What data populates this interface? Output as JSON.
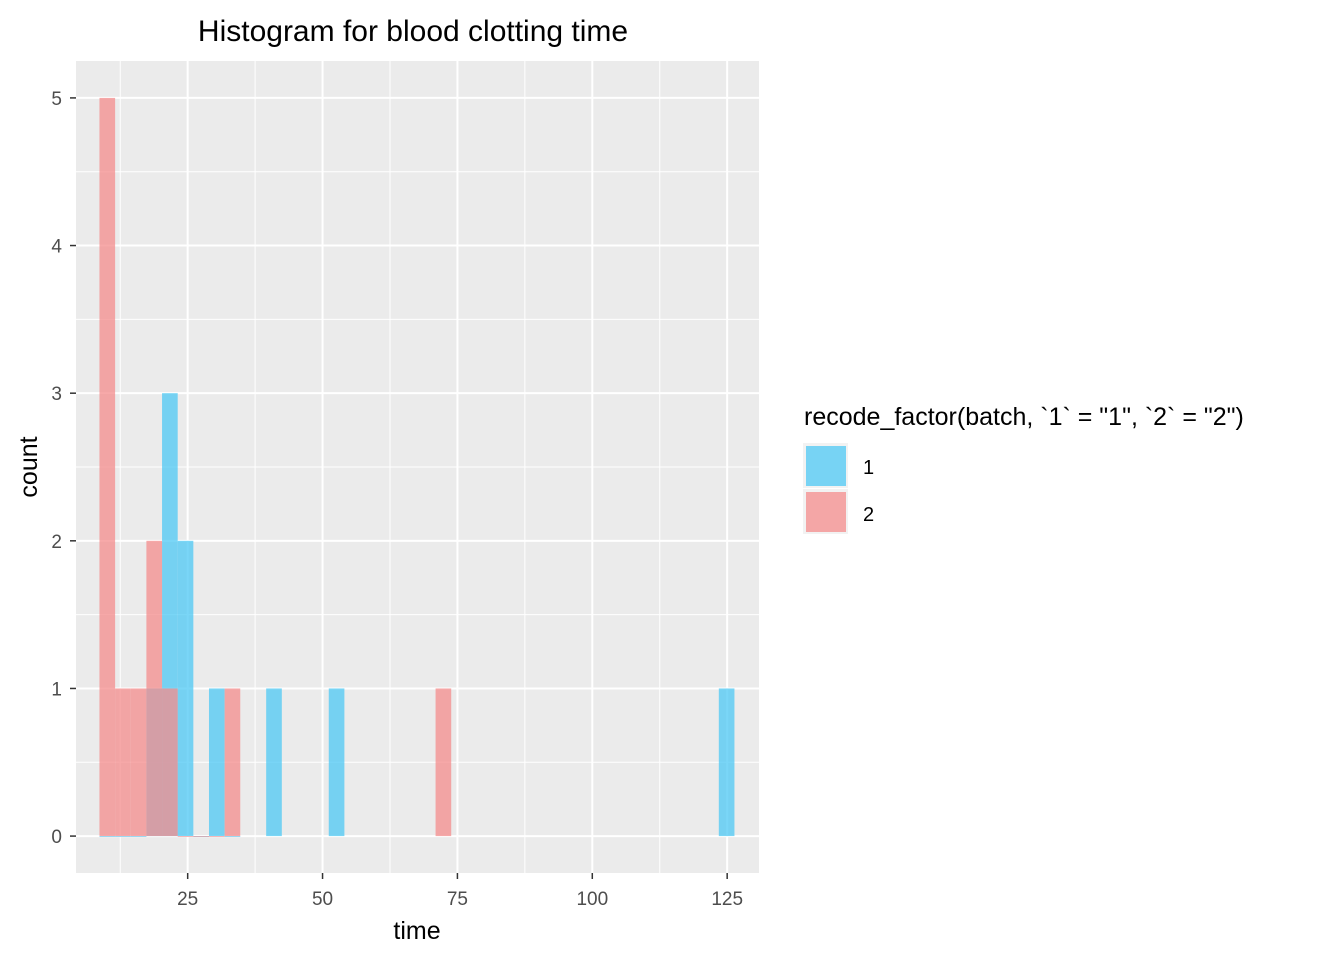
{
  "chart_data": {
    "type": "bar",
    "title": "Histogram for blood clotting time",
    "xlabel": "time",
    "ylabel": "count",
    "xlim": [
      4.3,
      130.9
    ],
    "ylim": [
      -0.25,
      5.25
    ],
    "x_ticks": [
      25,
      50,
      75,
      100,
      125
    ],
    "x_tick_labels": [
      "25",
      "50",
      "75",
      "100",
      "125"
    ],
    "y_ticks": [
      0,
      1,
      2,
      3,
      4,
      5
    ],
    "y_tick_labels": [
      "0",
      "1",
      "2",
      "3",
      "4",
      "5"
    ],
    "bin_width": 2.9,
    "grid": true,
    "legend": {
      "position": "right",
      "title": "recode_factor(batch, `1` = \"1\", `2` = \"2\")",
      "entries": [
        {
          "name": "1",
          "color": "#4dc8f4"
        },
        {
          "name": "2",
          "color": "#f48c8c"
        }
      ]
    },
    "series": [
      {
        "name": "1",
        "color": "#4dc8f4",
        "opacity": 0.75,
        "bins": [
          {
            "x": 10.1,
            "count": 0
          },
          {
            "x": 13.0,
            "count": 0
          },
          {
            "x": 15.9,
            "count": 0
          },
          {
            "x": 18.8,
            "count": 1
          },
          {
            "x": 21.7,
            "count": 3
          },
          {
            "x": 24.6,
            "count": 2
          },
          {
            "x": 27.5,
            "count": 0
          },
          {
            "x": 30.4,
            "count": 1
          },
          {
            "x": 33.3,
            "count": 0
          },
          {
            "x": 41.0,
            "count": 1
          },
          {
            "x": 52.6,
            "count": 1
          },
          {
            "x": 124.9,
            "count": 1
          }
        ]
      },
      {
        "name": "2",
        "color": "#f48c8c",
        "opacity": 0.75,
        "bins": [
          {
            "x": 10.1,
            "count": 5
          },
          {
            "x": 13.0,
            "count": 1
          },
          {
            "x": 15.9,
            "count": 1
          },
          {
            "x": 18.8,
            "count": 2
          },
          {
            "x": 21.7,
            "count": 1
          },
          {
            "x": 24.6,
            "count": 0
          },
          {
            "x": 27.5,
            "count": 0
          },
          {
            "x": 30.4,
            "count": 0
          },
          {
            "x": 33.3,
            "count": 1
          },
          {
            "x": 72.4,
            "count": 1
          }
        ]
      }
    ]
  }
}
